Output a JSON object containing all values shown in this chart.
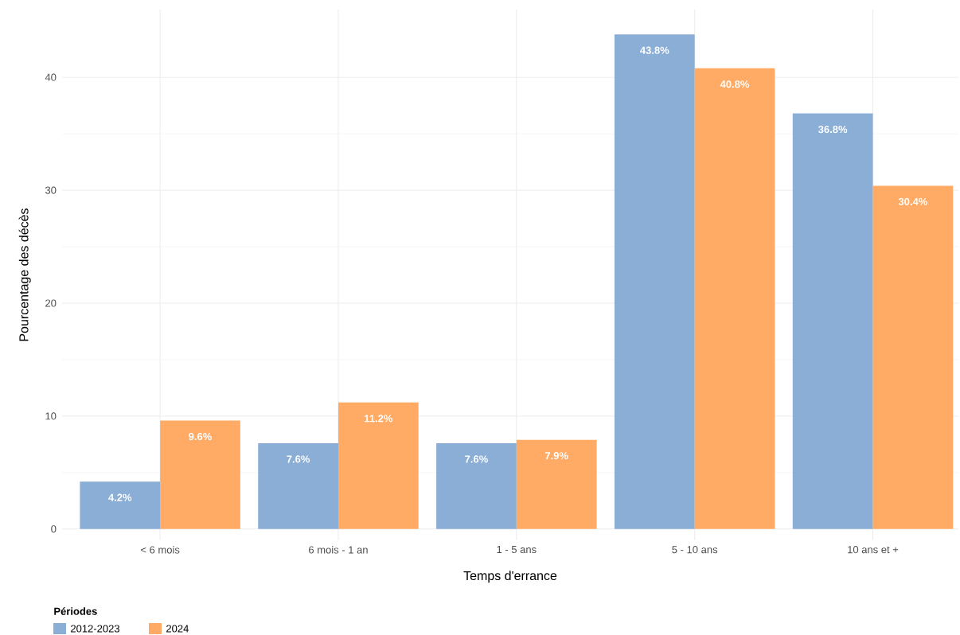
{
  "chart_data": {
    "type": "bar",
    "xlabel": "Temps d'errance",
    "ylabel": "Pourcentage des décès",
    "legend_title": "Périodes",
    "categories": [
      "< 6 mois",
      "6 mois - 1 an",
      "1 - 5 ans",
      "5 - 10 ans",
      "10 ans et +"
    ],
    "series": [
      {
        "name": "2012-2023",
        "color": "#8aaed6",
        "values": [
          4.2,
          7.6,
          7.6,
          43.8,
          36.8
        ],
        "value_labels": [
          "4.2%",
          "7.6%",
          "7.6%",
          "43.8%",
          "36.8%"
        ]
      },
      {
        "name": "2024",
        "color": "#ffab66",
        "values": [
          9.6,
          11.2,
          7.9,
          40.8,
          30.4
        ],
        "value_labels": [
          "9.6%",
          "11.2%",
          "7.9%",
          "40.8%",
          "30.4%"
        ]
      }
    ],
    "ylim": [
      -1,
      46
    ],
    "yticks": [
      0,
      10,
      20,
      30,
      40
    ],
    "grid": true,
    "legend": "bottom left"
  }
}
